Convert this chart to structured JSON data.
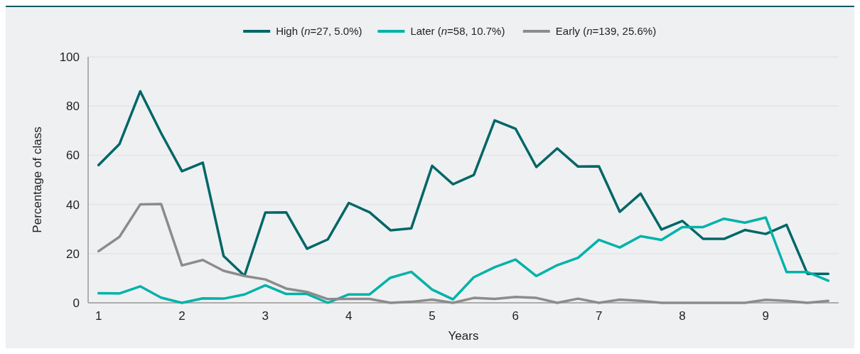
{
  "chart_data": {
    "type": "line",
    "xlabel": "Years",
    "ylabel": "Percentage of class",
    "x": [
      1,
      1.25,
      1.5,
      1.75,
      2,
      2.25,
      2.5,
      2.75,
      3,
      3.25,
      3.5,
      3.75,
      4,
      4.25,
      4.5,
      4.75,
      5,
      5.25,
      5.5,
      5.75,
      6,
      6.25,
      6.5,
      6.75,
      7,
      7.25,
      7.5,
      7.75,
      8,
      8.25,
      8.5,
      8.75,
      9,
      9.25,
      9.5,
      9.75
    ],
    "series": [
      {
        "name": "High (n=27, 5.0%)",
        "color": "#006666",
        "values": [
          56,
          64.5,
          86,
          69,
          53.5,
          57,
          19,
          11,
          36.7,
          36.8,
          22,
          25.8,
          40.6,
          36.8,
          29.5,
          30.3,
          55.7,
          48.2,
          52,
          74.2,
          70.8,
          55.2,
          62.8,
          55.4,
          55.5,
          37,
          44.4,
          29.8,
          33.3,
          26,
          26,
          29.6,
          28,
          31.7,
          11.8,
          11.8
        ]
      },
      {
        "name": "Later (n=58, 10.7%)",
        "color": "#00b2a9",
        "values": [
          3.9,
          3.8,
          6.7,
          2.1,
          0,
          1.8,
          1.7,
          3.4,
          7.1,
          3.6,
          3.6,
          0,
          3.4,
          3.4,
          10.2,
          12.6,
          5.4,
          1.4,
          10.4,
          14.5,
          17.6,
          10.9,
          15.3,
          18.3,
          25.6,
          22.5,
          27.1,
          25.6,
          30.8,
          30.8,
          34.2,
          32.6,
          34.7,
          12.5,
          12.5,
          9
        ]
      },
      {
        "name": "Early (n=139, 25.6%)",
        "color": "#8c8c8c",
        "values": [
          21,
          26.8,
          40,
          40.2,
          15.2,
          17.4,
          13,
          10.9,
          9.5,
          5.8,
          4.4,
          1.5,
          1.6,
          1.6,
          0,
          0.4,
          1.3,
          0,
          2,
          1.6,
          2.4,
          2,
          0,
          1.7,
          0,
          1.3,
          0.8,
          0,
          0,
          0,
          0,
          0,
          1.2,
          0.8,
          0,
          0.8
        ]
      }
    ],
    "xlim": [
      0.875,
      9.875
    ],
    "xticks": [
      1,
      2,
      3,
      4,
      5,
      6,
      7,
      8,
      9
    ],
    "ylim": [
      0,
      100
    ],
    "yticks": [
      0,
      20,
      40,
      60,
      80,
      100
    ],
    "grid": "y",
    "legend": "top",
    "marker": "none",
    "line_style": "solid"
  }
}
